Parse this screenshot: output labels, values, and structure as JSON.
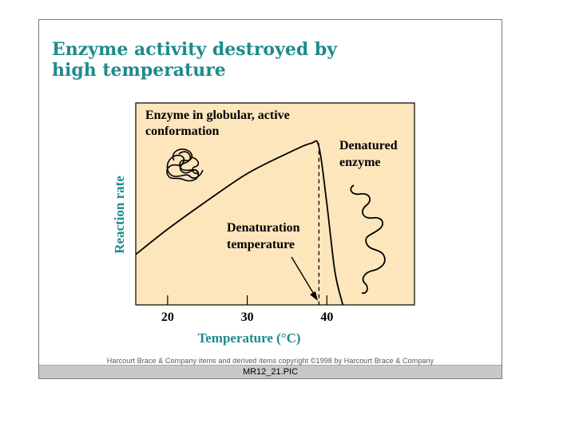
{
  "slide": {
    "title_line1": "Enzyme activity destroyed by",
    "title_line2": "high temperature",
    "copyright": "Harcourt Brace & Company items and derived items copyright ©1998 by Harcourt Brace & Company",
    "file_label": "MR12_21.PIC"
  },
  "colors": {
    "title": "#1f8a8c",
    "plot_background": "#fde6bc",
    "axis_label": "#1f8a8c",
    "curve": "#000000"
  },
  "chart_data": {
    "type": "line",
    "title": "",
    "xlabel": "Temperature (°C)",
    "ylabel": "Reaction rate",
    "x_ticks": [
      20,
      30,
      40
    ],
    "x_tick_labels": [
      "20",
      "30",
      "40"
    ],
    "xlim": [
      16,
      51
    ],
    "ylim": [
      0,
      1.2
    ],
    "y_ticks_shown": false,
    "series": [
      {
        "x": [
          16,
          20,
          25,
          30,
          35,
          38,
          39,
          40,
          41,
          42
        ],
        "y": [
          0.3,
          0.45,
          0.62,
          0.78,
          0.9,
          0.96,
          0.94,
          0.6,
          0.2,
          0
        ]
      }
    ],
    "annotations": {
      "active": {
        "line1": "Enzyme in globular, active",
        "line2": "conformation"
      },
      "denatured": {
        "line1": "Denatured",
        "line2": "enzyme"
      },
      "denaturation": {
        "line1": "Denaturation",
        "line2": "temperature",
        "x": 39
      }
    }
  }
}
